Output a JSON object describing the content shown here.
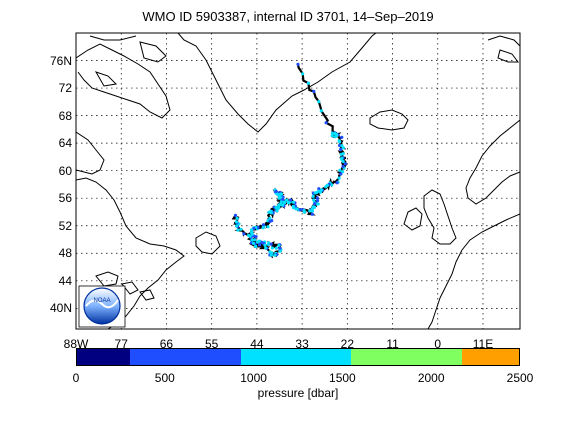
{
  "title": "WMO ID 5903387, internal ID 3701, 14–Sep–2019",
  "map": {
    "projection": "equirectangular",
    "lon_range": [
      -88,
      20
    ],
    "lat_range": [
      37,
      80
    ],
    "land_color": "#ffffff",
    "coastline_color": "#000000",
    "grid": "dotted",
    "lat_ticks": [
      "76N",
      "72",
      "68",
      "64",
      "60",
      "56",
      "52",
      "48",
      "44",
      "40N"
    ],
    "lon_ticks": [
      "88W",
      "77",
      "66",
      "55",
      "44",
      "33",
      "22",
      "11",
      "0",
      "11E"
    ]
  },
  "trajectory": {
    "color": "#000000",
    "points_lonlat": [
      [
        -34,
        75.5
      ],
      [
        -25.5,
        65.5
      ],
      [
        -24,
        65
      ],
      [
        -23.3,
        63
      ],
      [
        -22.6,
        61
      ],
      [
        -24.2,
        58.5
      ],
      [
        -28,
        57.5
      ],
      [
        -30,
        56.5
      ],
      [
        -29.5,
        55
      ],
      [
        -31,
        54
      ],
      [
        -34.5,
        54.5
      ],
      [
        -35.5,
        55.5
      ],
      [
        -37.5,
        55.4
      ],
      [
        -39.2,
        57
      ],
      [
        -38,
        56.5
      ],
      [
        -38,
        55.1
      ],
      [
        -38.8,
        54.5
      ],
      [
        -40.5,
        54
      ],
      [
        -41.3,
        52.3
      ],
      [
        -44.1,
        51.6
      ],
      [
        -45.7,
        50.6
      ],
      [
        -44.8,
        49.2
      ],
      [
        -41.3,
        49.3
      ],
      [
        -38.1,
        48.8
      ],
      [
        -40.4,
        47.6
      ],
      [
        -43.4,
        49.7
      ],
      [
        -48.3,
        51.4
      ],
      [
        -49.2,
        53.5
      ]
    ],
    "profile_pressures_dbar": []
  },
  "colorbar": {
    "label": "pressure [dbar]",
    "ticks": [
      "0",
      "500",
      "1000",
      "1500",
      "2000",
      "2500"
    ],
    "range": [
      0,
      2500
    ],
    "colors": [
      "#000080",
      "#1f4eff",
      "#00e0ff",
      "#80ff60",
      "#ffa000"
    ]
  },
  "logo": {
    "text": "NOAA"
  }
}
